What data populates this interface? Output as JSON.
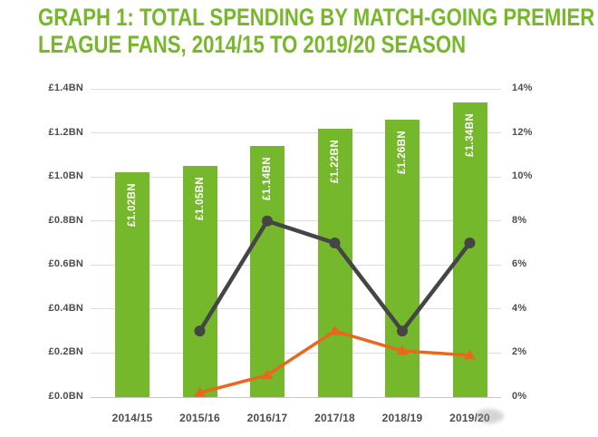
{
  "title": {
    "line1": "GRAPH 1: TOTAL SPENDING BY MATCH-GOING PREMIER",
    "line2": "LEAGUE FANS, 2014/15 TO 2019/20 SEASON"
  },
  "colors": {
    "title_green": "#76b82a",
    "bar_green": "#76b82c",
    "dark_line": "#454545",
    "orange_line": "#e8681c",
    "grid": "#dcdcdc",
    "baseline": "#c6c6c6",
    "axis_text": "#4d4d4f",
    "bar_label_text": "#ffffff",
    "background": "#ffffff"
  },
  "chart_data": {
    "type": "bar",
    "subtype": "combo bar + two line series on secondary percent axis",
    "title": "GRAPH 1: TOTAL SPENDING BY MATCH-GOING PREMIER LEAGUE FANS, 2014/15 TO 2019/20 SEASON",
    "categories": [
      "2014/15",
      "2015/16",
      "2016/17",
      "2017/18",
      "2018/19",
      "2019/20"
    ],
    "bar_series": {
      "name": "total-spending",
      "unit": "GBP billions",
      "values": [
        1.02,
        1.05,
        1.14,
        1.22,
        1.26,
        1.34
      ],
      "labels": [
        "£1.02BN",
        "£1.05BN",
        "£1.14BN",
        "£1.22BN",
        "£1.26BN",
        "£1.34BN"
      ]
    },
    "line_series": [
      {
        "name": "dark-grey-line",
        "color": "#454545",
        "marker": "circle",
        "categories": [
          "2015/16",
          "2016/17",
          "2017/18",
          "2018/19",
          "2019/20"
        ],
        "values_pct": [
          3,
          8,
          7,
          3,
          7
        ]
      },
      {
        "name": "orange-line",
        "color": "#e8681c",
        "marker": "triangle",
        "categories": [
          "2015/16",
          "2016/17",
          "2017/18",
          "2018/19",
          "2019/20"
        ],
        "values_pct": [
          0.2,
          1,
          3,
          2.1,
          1.9
        ]
      }
    ],
    "left_axis": {
      "unit": "£BN",
      "min": 0,
      "max": 1.4,
      "ticks": [
        "£1.4BN",
        "£1.2BN",
        "£1.0BN",
        "£0.8BN",
        "£0.6BN",
        "£0.4BN",
        "£0.2BN",
        "£0.0BN"
      ]
    },
    "right_axis": {
      "unit": "%",
      "min": 0,
      "max": 14,
      "ticks": [
        "14%",
        "12%",
        "10%",
        "8%",
        "6%",
        "4%",
        "2%",
        "0%"
      ]
    },
    "grid": true,
    "legend": "none"
  }
}
